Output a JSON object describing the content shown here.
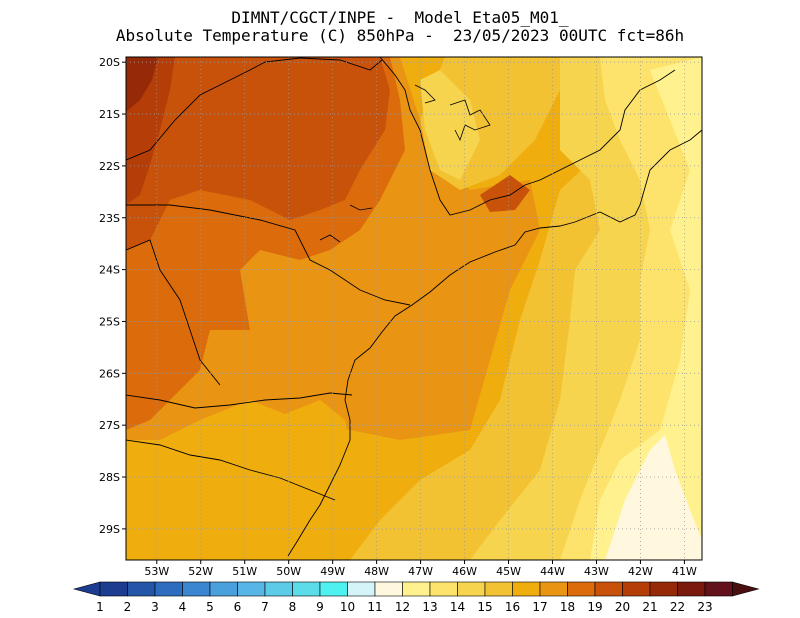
{
  "titles": {
    "line1": "DIMNT/CGCT/INPE -  Model Eta05_M01_",
    "line2": "Absolute Temperature (C) 850hPa -  23/05/2023 00UTC fct=86h"
  },
  "map": {
    "lon_range": [
      -53.7,
      -40.6
    ],
    "lat_range": [
      -29.6,
      -19.9
    ],
    "grid": "dotted"
  },
  "axes": {
    "lat_ticks": [
      {
        "value": -20,
        "label": "20S"
      },
      {
        "value": -21,
        "label": "21S"
      },
      {
        "value": -22,
        "label": "22S"
      },
      {
        "value": -23,
        "label": "23S"
      },
      {
        "value": -24,
        "label": "24S"
      },
      {
        "value": -25,
        "label": "25S"
      },
      {
        "value": -26,
        "label": "26S"
      },
      {
        "value": -27,
        "label": "27S"
      },
      {
        "value": -28,
        "label": "28S"
      },
      {
        "value": -29,
        "label": "29S"
      }
    ],
    "lon_ticks": [
      {
        "value": -53,
        "label": "53W"
      },
      {
        "value": -52,
        "label": "52W"
      },
      {
        "value": -51,
        "label": "51W"
      },
      {
        "value": -50,
        "label": "50W"
      },
      {
        "value": -49,
        "label": "49W"
      },
      {
        "value": -48,
        "label": "48W"
      },
      {
        "value": -47,
        "label": "47W"
      },
      {
        "value": -46,
        "label": "46W"
      },
      {
        "value": -45,
        "label": "45W"
      },
      {
        "value": -44,
        "label": "44W"
      },
      {
        "value": -43,
        "label": "43W"
      },
      {
        "value": -42,
        "label": "42W"
      },
      {
        "value": -41,
        "label": "41W"
      }
    ]
  },
  "colorbar": {
    "labels": [
      "1",
      "2",
      "3",
      "4",
      "5",
      "6",
      "7",
      "8",
      "9",
      "10",
      "11",
      "12",
      "13",
      "14",
      "15",
      "16",
      "17",
      "18",
      "19",
      "20",
      "21",
      "22",
      "23"
    ],
    "colors": [
      "#1c3d8f",
      "#2456a8",
      "#2d6cbf",
      "#3a86d0",
      "#4a9fdd",
      "#58b6e6",
      "#5ccbe8",
      "#5cdce8",
      "#4ff0f0",
      "#d4f4fa",
      "#fff8df",
      "#fff28e",
      "#fde36b",
      "#f6d44e",
      "#f3c233",
      "#f0ad0e",
      "#ea9413",
      "#dc6c0b",
      "#c9520a",
      "#b53e08",
      "#962a08",
      "#7a1a0d",
      "#63121c"
    ],
    "left_color": "#1c3d8f",
    "right_color": "#4a1010"
  },
  "field": {
    "colors": {
      "t21": "#962a08",
      "t20": "#b53e08",
      "t19": "#c9520a",
      "t18": "#dc6c0b",
      "t17": "#ea9413",
      "t16": "#f0ad0e",
      "t15": "#f3c233",
      "t14": "#f6d44e",
      "t13": "#fde36b",
      "t12": "#fff28e",
      "t11": "#fff8df"
    }
  }
}
